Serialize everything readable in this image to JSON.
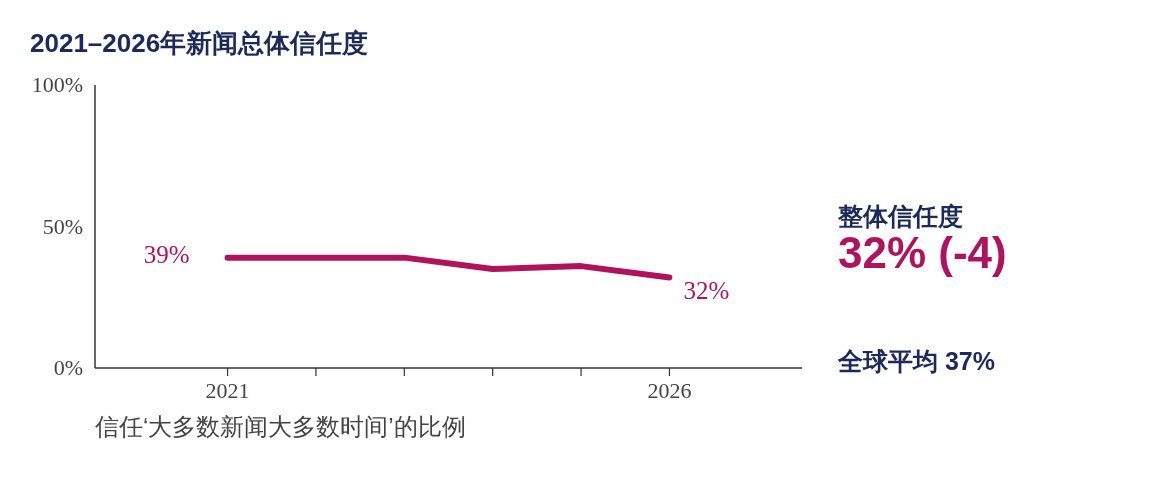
{
  "chart_data": {
    "type": "line",
    "title": "2021–2026年新闻总体信任度",
    "x": [
      2021,
      2022,
      2023,
      2024,
      2025,
      2026
    ],
    "series": [
      {
        "color": "#b0135e",
        "values": [
          39,
          39,
          39,
          35,
          36,
          32
        ],
        "value_labels": [
          "39%",
          null,
          null,
          null,
          null,
          "32%"
        ]
      }
    ],
    "xlim": [
      2019.5,
      2027.5
    ],
    "xticks": [
      2021,
      {
        "value": 2022,
        "label": null
      },
      {
        "value": 2023,
        "label": null
      },
      {
        "value": 2024,
        "label": null
      },
      {
        "value": 2025,
        "label": null
      },
      2026
    ],
    "ylim": [
      0,
      100
    ],
    "yticks": [
      {
        "value": 0,
        "label": "0%"
      },
      {
        "value": 50,
        "label": "50%"
      },
      {
        "value": 100,
        "label": "100%"
      }
    ],
    "grid": false,
    "marker": "none",
    "line_style": "solid",
    "annotations": [
      "整体信任度",
      "32% (-4)",
      "全球平均 37%",
      "信任‘大多数新闻大多数时间’的比例"
    ]
  }
}
